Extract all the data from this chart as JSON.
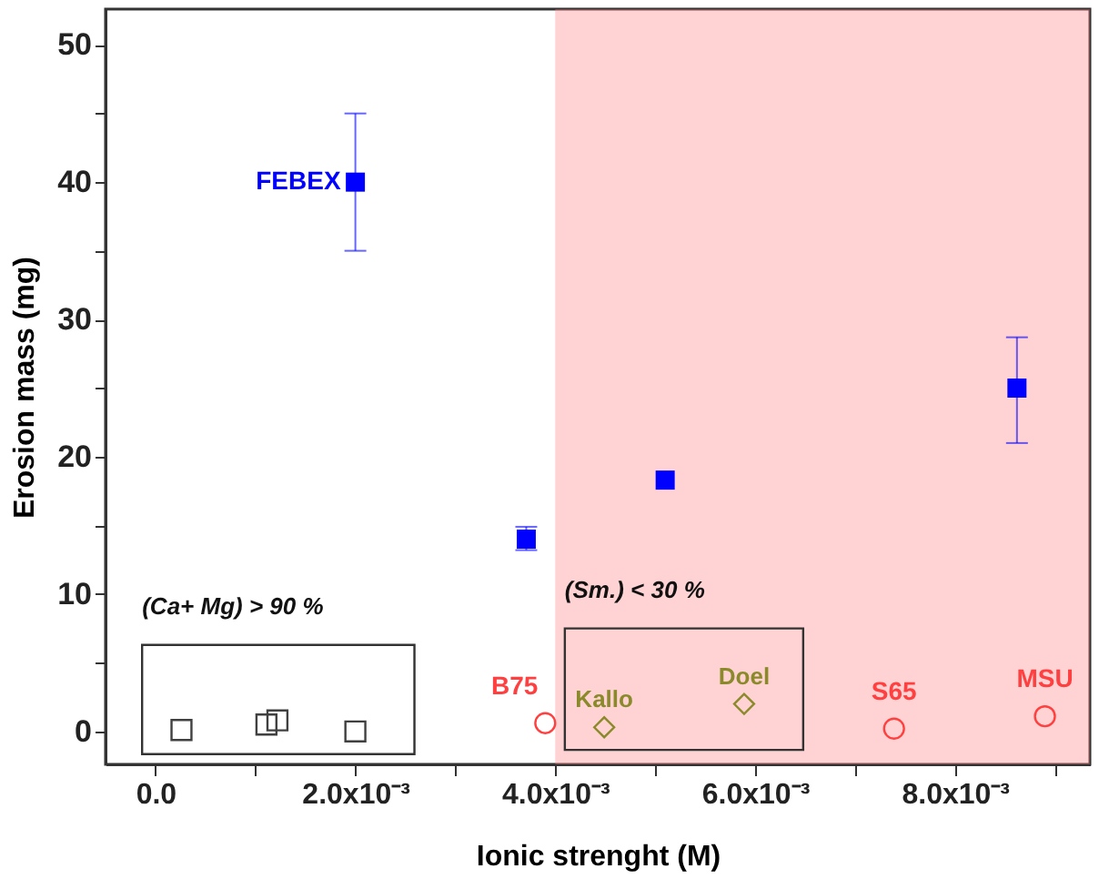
{
  "chart_data": {
    "type": "scatter",
    "xlabel": "Ionic strenght (M)",
    "ylabel": "Erosion mass (mg)",
    "xlim": [
      -0.0005,
      0.00935
    ],
    "ylim": [
      -2.4,
      52.6
    ],
    "xticks": [
      {
        "value": 0,
        "label": "0.0"
      },
      {
        "value": 0.001,
        "label": null
      },
      {
        "value": 0.002,
        "label": "2.0x10⁻³"
      },
      {
        "value": 0.003,
        "label": null
      },
      {
        "value": 0.004,
        "label": "4.0x10⁻³"
      },
      {
        "value": 0.005,
        "label": null
      },
      {
        "value": 0.006,
        "label": "6.0x10⁻³"
      },
      {
        "value": 0.007,
        "label": null
      },
      {
        "value": 0.008,
        "label": "8.0x10⁻³"
      },
      {
        "value": 0.009,
        "label": null
      }
    ],
    "yticks": [
      0,
      {
        "value": 5,
        "label": null
      },
      10,
      {
        "value": 15,
        "label": null
      },
      20,
      {
        "value": 25,
        "label": null
      },
      30,
      {
        "value": 35,
        "label": null
      },
      40,
      {
        "value": 45,
        "label": null
      },
      50
    ],
    "grid": false,
    "legend": false,
    "series": [
      {
        "color": "#0000ff",
        "marker": "square",
        "x": [
          0.002,
          0.00371,
          0.0051,
          0.00862
        ],
        "values": [
          40,
          14,
          18.3,
          25
        ],
        "errors": [
          [
            35,
            45
          ],
          [
            13.2,
            14.9
          ],
          null,
          [
            21,
            28.7
          ]
        ]
      },
      {
        "color": "#ff4040",
        "marker": "circle",
        "x": [
          0.0039,
          0.00739,
          0.0089
        ],
        "values": [
          0.6,
          0.2,
          1.1
        ]
      },
      {
        "color": "#404040",
        "marker": "square",
        "x": [
          0.00026,
          0.00111,
          0.00122,
          0.002
        ],
        "values": [
          0.1,
          0.5,
          0.8,
          0
        ]
      },
      {
        "color": "#8a8a2a",
        "marker": "diamond",
        "x": [
          0.00449,
          0.00589
        ],
        "values": [
          0.3,
          2
        ]
      }
    ],
    "bands": [
      {
        "axis": "x",
        "from": 0.004,
        "to": 0.00935,
        "color": "#ff8080"
      }
    ],
    "annotations": [
      {
        "text": "FEBEX",
        "x": 0.002,
        "y": 40
      },
      {
        "text": "B75",
        "x": 0.0039,
        "y": 0.6
      },
      {
        "text": "S65",
        "x": 0.00739,
        "y": 0.2
      },
      {
        "text": "MSU",
        "x": 0.0089,
        "y": 1.1
      },
      {
        "text": "Kallo",
        "x": 0.00449,
        "y": 0.3
      },
      {
        "text": "Doel",
        "x": 0.00589,
        "y": 2
      },
      "(Ca+ Mg)  > 90 %",
      "(Sm.)  < 30 %"
    ]
  }
}
